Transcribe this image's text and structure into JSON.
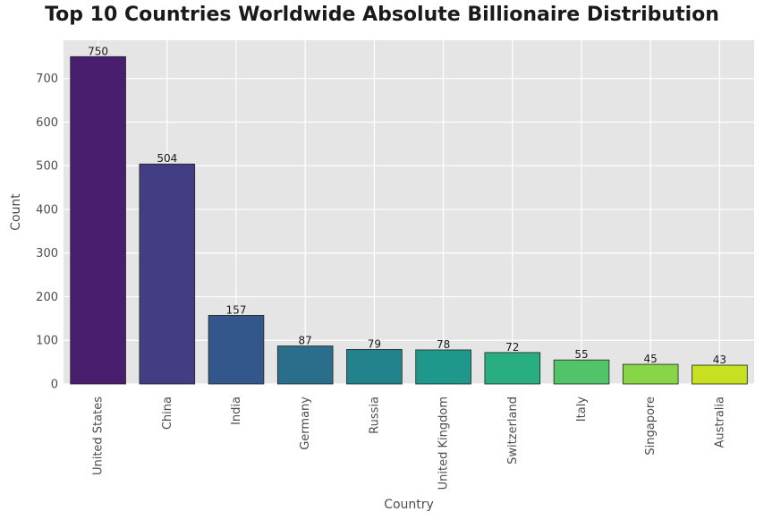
{
  "chart_data": {
    "type": "bar",
    "title": "Top 10 Countries Worldwide Absolute Billionaire Distribution",
    "xlabel": "Country",
    "ylabel": "Count",
    "categories": [
      "United States",
      "China",
      "India",
      "Germany",
      "Russia",
      "United Kingdom",
      "Switzerland",
      "Italy",
      "Singapore",
      "Australia"
    ],
    "values": [
      750,
      504,
      157,
      87,
      79,
      78,
      72,
      55,
      45,
      43
    ],
    "colors": [
      "#4a1e6e",
      "#433e84",
      "#33578a",
      "#2a6e8c",
      "#22838d",
      "#1e988a",
      "#28ae80",
      "#51c469",
      "#89d548",
      "#c7e020"
    ],
    "yticks": [
      0,
      100,
      200,
      300,
      400,
      500,
      600,
      700
    ],
    "ylim": [
      0,
      787.5
    ],
    "grid": true,
    "background": "#e5e5e5",
    "gridColor": "#ffffff"
  }
}
